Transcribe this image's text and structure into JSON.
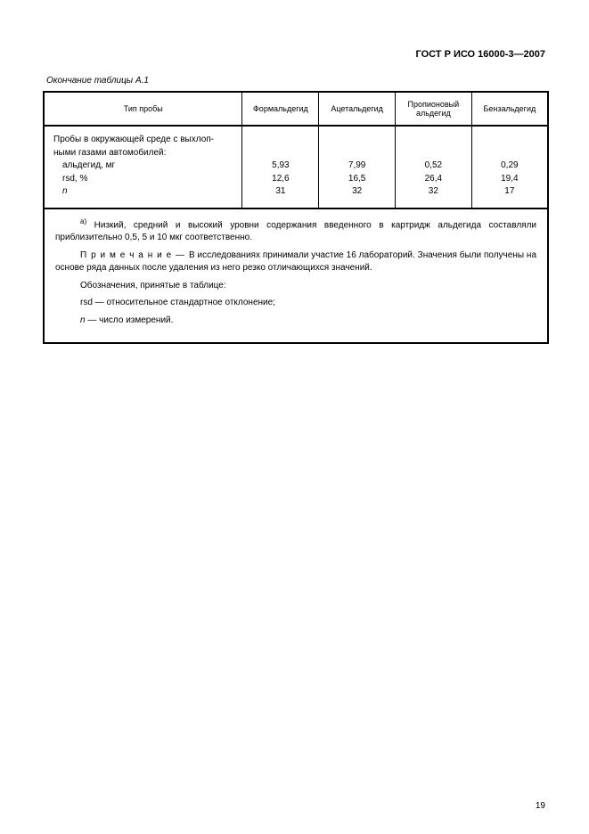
{
  "document_title": "ГОСТ Р ИСО 16000-3—2007",
  "table_caption": "Окончание таблицы А.1",
  "columns": [
    "Тип пробы",
    "Формальдегид",
    "Ацетальдегид",
    "Пропионовый альдегид",
    "Бензальдегид"
  ],
  "sample_heading_l1": "Пробы в окружающей среде с выхлоп-",
  "sample_heading_l2": "ными газами автомобилей:",
  "row_labels": {
    "aldehyde": "альдегид, мг",
    "rsd": "rsd, %",
    "n": "n"
  },
  "values": {
    "formaldehyde": {
      "aldehyde": "5,93",
      "rsd": "12,6",
      "n": "31"
    },
    "acetaldehyde": {
      "aldehyde": "7,99",
      "rsd": "16,5",
      "n": "32"
    },
    "propionaldehyde": {
      "aldehyde": "0,52",
      "rsd": "26,4",
      "n": "32"
    },
    "benzaldehyde": {
      "aldehyde": "0,29",
      "rsd": "19,4",
      "n": "17"
    }
  },
  "notes": {
    "footnote_a_sup": "а)",
    "footnote_a": " Низкий, средний и высокий уровни содержания введенного в картридж альдегида составляли приблизительно 0,5, 5 и 10 мкг соответственно.",
    "note_label": "П р и м е ч а н и е — ",
    "note_text": "В исследованиях принимали участие 16 лабораторий. Значения были получены на основе ряда данных после удаления из него резко отличающихся значений.",
    "legend_heading": "Обозначения, принятые в таблице:",
    "legend_rsd": "rsd — относительное стандартное отклонение;",
    "legend_n_symbol": "n",
    "legend_n_text": " — число измерений."
  },
  "page_number": "19",
  "colors": {
    "text": "#000000",
    "background": "#ffffff",
    "border": "#000000"
  },
  "fontsize": {
    "header": 11,
    "caption": 10,
    "th": 9,
    "td": 10,
    "notes": 10,
    "pagenum": 10
  }
}
